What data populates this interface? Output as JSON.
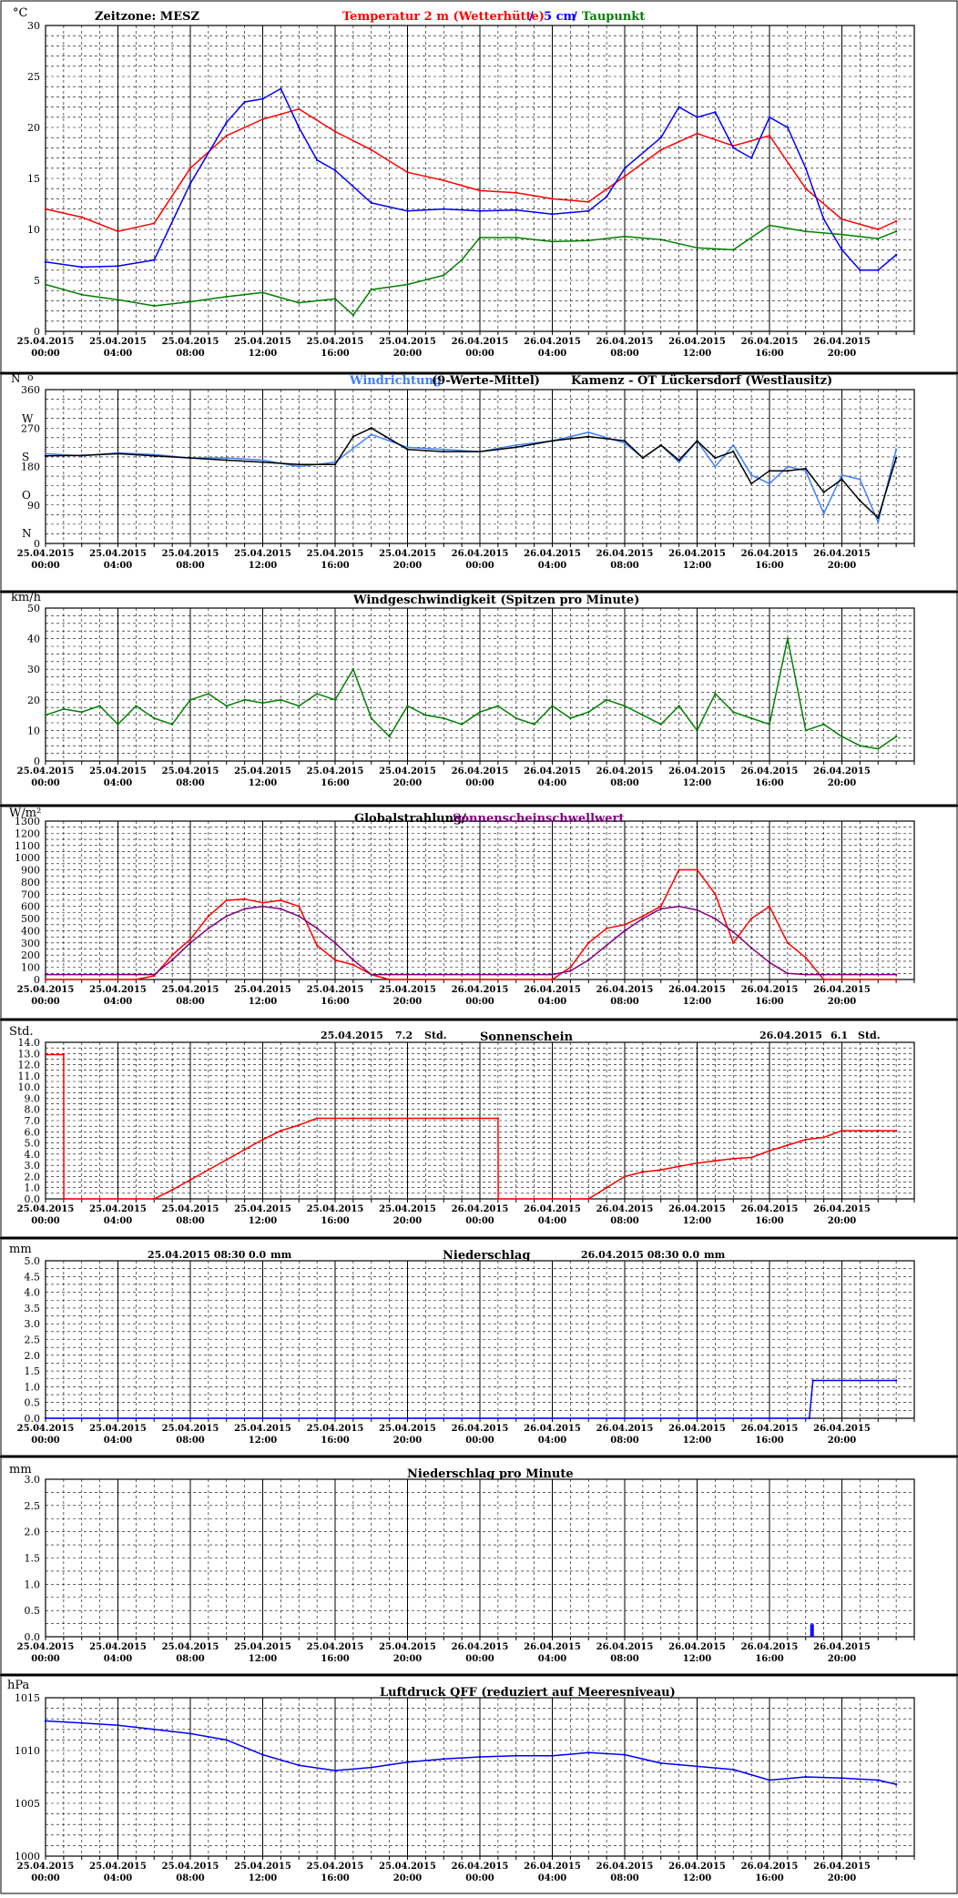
{
  "x_ticks": {
    "dates": [
      "25.04.2015",
      "25.04.2015",
      "25.04.2015",
      "25.04.2015",
      "25.04.2015",
      "25.04.2015",
      "26.04.2015",
      "26.04.2015",
      "26.04.2015",
      "26.04.2015",
      "26.04.2015",
      "26.04.2015"
    ],
    "times": [
      "00:00",
      "04:00",
      "08:00",
      "12:00",
      "16:00",
      "20:00",
      "00:00",
      "04:00",
      "08:00",
      "12:00",
      "16:00",
      "20:00"
    ]
  },
  "colors": {
    "red": "#ff0000",
    "blue": "#0000ff",
    "green": "#008000",
    "purple": "#800080",
    "black": "#000000",
    "lightblue": "#4080ff"
  },
  "panels": {
    "temperature": {
      "unit": "°C",
      "zone_label": "Zeitzone: MESZ",
      "title_red": "Temperatur 2 m (Wetterhütte)",
      "sep1": "/",
      "title_blue": "5 cm",
      "sep2": "/",
      "title_green": "Taupunkt",
      "yticks": [
        "0",
        "5",
        "10",
        "15",
        "20",
        "25",
        "30"
      ]
    },
    "wind_direction": {
      "unit": "N",
      "unit2": "o",
      "title_blue": "Windrichtung",
      "title_black": "(9-Werte-Mittel)",
      "station": "Kamenz - OT Lückersdorf (Westlausitz)",
      "yticks": [
        "0",
        "90",
        "180",
        "270",
        "360"
      ],
      "compass": [
        "N",
        "O",
        "S",
        "W"
      ]
    },
    "wind_speed": {
      "unit": "km/h",
      "title": "Windgeschwindigkeit (Spitzen pro Minute)",
      "yticks": [
        "0",
        "10",
        "20",
        "30",
        "40",
        "50"
      ]
    },
    "radiation": {
      "unit": "W/m²",
      "title_red": "Globalstrahlung/",
      "title_purple": "Sonnenscheinschwellwert",
      "yticks": [
        "0",
        "100",
        "200",
        "300",
        "400",
        "500",
        "600",
        "700",
        "800",
        "900",
        "1000",
        "1100",
        "1200",
        "1300"
      ]
    },
    "sunshine": {
      "unit": "Std.",
      "title": "Sonnenschein",
      "day1_date": "25.04.2015",
      "day1_value": "7.2",
      "day1_unit": "Std.",
      "day2_date": "26.04.2015",
      "day2_value": "6.1",
      "day2_unit": "Std.",
      "yticks": [
        "0.0",
        "1.0",
        "2.0",
        "3.0",
        "4.0",
        "5.0",
        "6.0",
        "7.0",
        "8.0",
        "9.0",
        "10.0",
        "11.0",
        "12.0",
        "13.0",
        "14.0"
      ]
    },
    "precipitation": {
      "unit": "mm",
      "title": "Niederschlag",
      "day1_label": "25.04.2015 08:30",
      "day1_value": "0.0",
      "day1_unit": "mm",
      "day2_label": "26.04.2015 08:30",
      "day2_value": "0.0",
      "day2_unit": "mm",
      "yticks": [
        "0.0",
        "0.5",
        "1.0",
        "1.5",
        "2.0",
        "2.5",
        "3.0",
        "3.5",
        "4.0",
        "4.5",
        "5.0"
      ]
    },
    "precip_minute": {
      "unit": "mm",
      "title": "Niederschlag pro Minute",
      "yticks": [
        "0.0",
        "0.5",
        "1.0",
        "1.5",
        "2.0",
        "2.5",
        "3.0"
      ]
    },
    "pressure": {
      "unit": "hPa",
      "title": "Luftdruck QFF (reduziert auf Meeresniveau)",
      "yticks": [
        "1000",
        "1005",
        "1010",
        "1015"
      ]
    }
  },
  "chart_data": [
    {
      "type": "line",
      "title": "Temperatur 2 m (Wetterhütte) / 5 cm / Taupunkt",
      "ylabel": "°C",
      "xlabel": "",
      "x_unit": "hours since 25.04.2015 00:00",
      "ylim": [
        0,
        30
      ],
      "series": [
        {
          "name": "Temperatur 2 m (Wetterhütte)",
          "color": "#ff0000",
          "x": [
            0,
            2,
            4,
            6,
            8,
            10,
            12,
            14,
            16,
            18,
            20,
            22,
            24,
            26,
            28,
            30,
            32,
            34,
            36,
            38,
            40,
            42,
            44,
            46,
            47
          ],
          "y": [
            12,
            11.2,
            9.8,
            10.6,
            16,
            19.2,
            20.8,
            21.8,
            19.6,
            17.8,
            15.6,
            14.8,
            13.8,
            13.6,
            13,
            12.7,
            15.2,
            17.8,
            19.4,
            18.2,
            19.2,
            14,
            11,
            10,
            10.8
          ]
        },
        {
          "name": "5 cm",
          "color": "#0000ff",
          "x": [
            0,
            2,
            4,
            6,
            8,
            10,
            11,
            12,
            13,
            14,
            15,
            16,
            18,
            20,
            22,
            24,
            26,
            28,
            30,
            31,
            32,
            34,
            35,
            36,
            37,
            38,
            39,
            40,
            41,
            42,
            43,
            44,
            45,
            46,
            47
          ],
          "y": [
            6.8,
            6.3,
            6.4,
            7,
            14.5,
            20.5,
            22.5,
            22.8,
            23.8,
            20,
            16.8,
            15.8,
            12.6,
            11.8,
            12,
            11.8,
            11.9,
            11.5,
            11.8,
            13.2,
            16,
            19,
            22,
            21,
            21.5,
            18,
            17,
            21,
            20,
            16,
            11,
            8,
            6,
            6,
            7.5
          ]
        },
        {
          "name": "Taupunkt",
          "color": "#008000",
          "x": [
            0,
            2,
            4,
            6,
            8,
            10,
            12,
            14,
            16,
            17,
            18,
            20,
            22,
            23,
            24,
            26,
            28,
            30,
            32,
            34,
            36,
            38,
            40,
            42,
            44,
            46,
            47
          ],
          "y": [
            4.6,
            3.6,
            3.1,
            2.5,
            2.9,
            3.4,
            3.8,
            2.8,
            3.2,
            1.6,
            4.1,
            4.6,
            5.5,
            7,
            9.2,
            9.2,
            8.8,
            8.9,
            9.3,
            9,
            8.2,
            8,
            10.4,
            9.8,
            9.5,
            9.1,
            9.8
          ]
        }
      ]
    },
    {
      "type": "line",
      "title": "Windrichtung (9-Werte-Mittel)",
      "ylabel": "",
      "ylim": [
        0,
        360
      ],
      "series": [
        {
          "name": "Windrichtung",
          "color": "#4080ff",
          "x": [
            0,
            2,
            4,
            6,
            8,
            10,
            12,
            14,
            16,
            18,
            20,
            22,
            24,
            26,
            28,
            30,
            32,
            33,
            34,
            35,
            36,
            37,
            38,
            39,
            40,
            41,
            42,
            43,
            44,
            45,
            46,
            47
          ],
          "y": [
            210,
            205,
            212,
            208,
            200,
            200,
            195,
            180,
            190,
            255,
            225,
            220,
            215,
            230,
            240,
            260,
            235,
            200,
            230,
            190,
            240,
            180,
            230,
            160,
            140,
            180,
            170,
            70,
            160,
            150,
            50,
            220
          ]
        },
        {
          "name": "(9-Werte-Mittel)",
          "color": "#000000",
          "x": [
            0,
            2,
            4,
            6,
            8,
            10,
            12,
            14,
            16,
            17,
            18,
            20,
            22,
            24,
            26,
            28,
            30,
            32,
            33,
            34,
            35,
            36,
            37,
            38,
            39,
            40,
            41,
            42,
            43,
            44,
            45,
            46,
            47
          ],
          "y": [
            205,
            206,
            210,
            205,
            200,
            195,
            190,
            185,
            185,
            250,
            270,
            220,
            215,
            215,
            225,
            240,
            250,
            240,
            200,
            230,
            195,
            240,
            200,
            215,
            140,
            170,
            170,
            175,
            120,
            150,
            100,
            60,
            200
          ]
        }
      ]
    },
    {
      "type": "line",
      "title": "Windgeschwindigkeit (Spitzen pro Minute)",
      "ylabel": "km/h",
      "ylim": [
        0,
        50
      ],
      "series": [
        {
          "name": "Windgeschwindigkeit",
          "color": "#008000",
          "x": [
            0,
            1,
            2,
            3,
            4,
            5,
            6,
            7,
            8,
            9,
            10,
            11,
            12,
            13,
            14,
            15,
            16,
            17,
            18,
            19,
            20,
            21,
            22,
            23,
            24,
            25,
            26,
            27,
            28,
            29,
            30,
            31,
            32,
            33,
            34,
            35,
            36,
            37,
            38,
            39,
            40,
            41,
            42,
            43,
            44,
            45,
            46,
            47
          ],
          "y": [
            15,
            17,
            16,
            18,
            12,
            18,
            14,
            12,
            20,
            22,
            18,
            20,
            19,
            20,
            18,
            22,
            20,
            30,
            14,
            8,
            18,
            15,
            14,
            12,
            16,
            18,
            14,
            12,
            18,
            14,
            16,
            20,
            18,
            15,
            12,
            18,
            10,
            22,
            16,
            14,
            12,
            40,
            10,
            12,
            8,
            5,
            4,
            8
          ]
        }
      ]
    },
    {
      "type": "line",
      "title": "Globalstrahlung/ Sonnenscheinschwellwert",
      "ylabel": "W/m²",
      "ylim": [
        0,
        1300
      ],
      "series": [
        {
          "name": "Globalstrahlung",
          "color": "#ff0000",
          "x": [
            0,
            5,
            6,
            7,
            8,
            9,
            10,
            11,
            12,
            13,
            14,
            15,
            16,
            17,
            18,
            19,
            20,
            24,
            28,
            29,
            30,
            31,
            32,
            33,
            34,
            35,
            36,
            37,
            38,
            39,
            40,
            41,
            42,
            43,
            44,
            45,
            47
          ],
          "y": [
            0,
            0,
            30,
            200,
            330,
            520,
            650,
            660,
            630,
            650,
            600,
            280,
            160,
            120,
            40,
            0,
            0,
            0,
            0,
            100,
            300,
            420,
            450,
            520,
            600,
            900,
            900,
            700,
            300,
            500,
            600,
            300,
            180,
            0,
            0,
            0,
            0
          ]
        },
        {
          "name": "Sonnenscheinschwellwert",
          "color": "#800080",
          "x": [
            0,
            5,
            6,
            7,
            8,
            9,
            10,
            11,
            12,
            13,
            14,
            15,
            16,
            17,
            18,
            19,
            20,
            24,
            28,
            29,
            30,
            31,
            32,
            33,
            34,
            35,
            36,
            37,
            38,
            39,
            40,
            41,
            42,
            43,
            44,
            45,
            47
          ],
          "y": [
            40,
            40,
            40,
            160,
            300,
            420,
            520,
            580,
            600,
            580,
            520,
            420,
            300,
            160,
            40,
            40,
            40,
            40,
            40,
            70,
            160,
            280,
            400,
            500,
            580,
            600,
            570,
            500,
            390,
            260,
            140,
            50,
            40,
            40,
            40,
            40,
            40
          ]
        }
      ]
    },
    {
      "type": "line",
      "title": "Sonnenschein",
      "ylabel": "Std.",
      "ylim": [
        0,
        14
      ],
      "series": [
        {
          "name": "Sonnenschein",
          "color": "#ff0000",
          "x": [
            0,
            1,
            1.01,
            6,
            7,
            8,
            9,
            10,
            11,
            12,
            13,
            14,
            15,
            16,
            17,
            18,
            19,
            20,
            21,
            22,
            23,
            24,
            25,
            25.01,
            30,
            31,
            32,
            33,
            34,
            35,
            36,
            37,
            38,
            39,
            40,
            41,
            42,
            43,
            44,
            45,
            46,
            47
          ],
          "y": [
            12.9,
            12.9,
            0,
            0,
            0.8,
            1.7,
            2.6,
            3.5,
            4.4,
            5.3,
            6.1,
            6.6,
            7.2,
            7.2,
            7.2,
            7.2,
            7.2,
            7.2,
            7.2,
            7.2,
            7.2,
            7.2,
            7.2,
            0,
            0,
            1,
            2,
            2.4,
            2.6,
            2.9,
            3.2,
            3.4,
            3.6,
            3.7,
            4.3,
            4.8,
            5.3,
            5.5,
            6.1,
            6.1,
            6.1,
            6.1
          ]
        }
      ]
    },
    {
      "type": "line",
      "title": "Niederschlag",
      "ylabel": "mm",
      "ylim": [
        0,
        5
      ],
      "series": [
        {
          "name": "Niederschlag",
          "color": "#0000ff",
          "x": [
            0,
            42.2,
            42.4,
            47
          ],
          "y": [
            0,
            0,
            1.2,
            1.2
          ]
        }
      ]
    },
    {
      "type": "bar",
      "title": "Niederschlag pro Minute",
      "ylabel": "mm",
      "ylim": [
        0,
        3
      ],
      "series": [
        {
          "name": "Niederschlag pro Minute",
          "color": "#0000ff",
          "x": [
            42.3,
            42.4
          ],
          "y": [
            0.1,
            0.1
          ]
        }
      ]
    },
    {
      "type": "line",
      "title": "Luftdruck QFF (reduziert auf Meeresniveau)",
      "ylabel": "hPa",
      "ylim": [
        1000,
        1015
      ],
      "series": [
        {
          "name": "Luftdruck QFF",
          "color": "#0000ff",
          "x": [
            0,
            2,
            4,
            6,
            8,
            10,
            12,
            14,
            16,
            18,
            20,
            22,
            24,
            26,
            28,
            30,
            32,
            34,
            36,
            38,
            40,
            42,
            44,
            46,
            47
          ],
          "y": [
            1012.8,
            1012.6,
            1012.4,
            1012,
            1011.6,
            1011,
            1009.6,
            1008.6,
            1008.1,
            1008.4,
            1008.9,
            1009.2,
            1009.4,
            1009.5,
            1009.5,
            1009.8,
            1009.6,
            1008.8,
            1008.5,
            1008.2,
            1007.2,
            1007.5,
            1007.4,
            1007.2,
            1006.8
          ]
        }
      ]
    }
  ]
}
